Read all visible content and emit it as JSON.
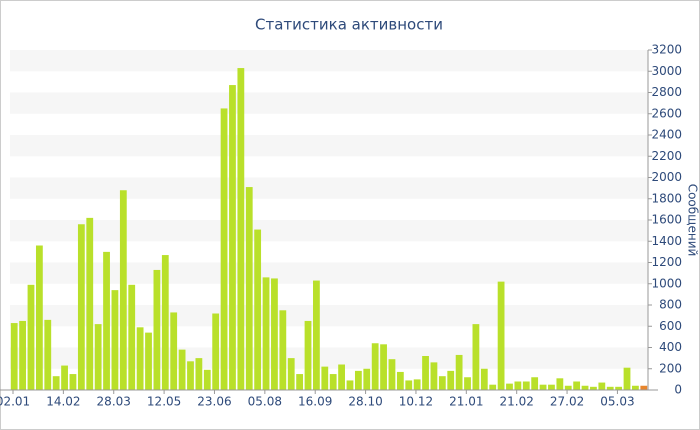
{
  "chart_data": {
    "type": "bar",
    "title": "Статистика активности",
    "y_axis_label": "Сообщений",
    "categories": [
      "02.01",
      null,
      null,
      null,
      null,
      null,
      "14.02",
      null,
      null,
      null,
      null,
      null,
      "28.03",
      null,
      null,
      null,
      null,
      null,
      "12.05",
      null,
      null,
      null,
      null,
      null,
      "23.06",
      null,
      null,
      null,
      null,
      null,
      "05.08",
      null,
      null,
      null,
      null,
      null,
      "16.09",
      null,
      null,
      null,
      null,
      null,
      "28.10",
      null,
      null,
      null,
      null,
      null,
      "10.12",
      null,
      null,
      null,
      null,
      null,
      "21.01",
      null,
      null,
      null,
      null,
      null,
      "21.02",
      null,
      null,
      null,
      null,
      null,
      "27.02",
      null,
      null,
      null,
      null,
      null,
      "05.03",
      null,
      null,
      null
    ],
    "values": [
      630,
      650,
      990,
      1360,
      660,
      130,
      230,
      150,
      1560,
      1620,
      620,
      1300,
      940,
      1880,
      990,
      590,
      540,
      1130,
      1270,
      730,
      380,
      270,
      300,
      190,
      720,
      2650,
      2870,
      3030,
      1910,
      1510,
      1060,
      1050,
      750,
      300,
      150,
      650,
      1030,
      220,
      150,
      240,
      90,
      180,
      200,
      440,
      430,
      290,
      170,
      90,
      100,
      320,
      260,
      130,
      180,
      330,
      120,
      620,
      200,
      50,
      1020,
      60,
      80,
      80,
      120,
      50,
      50,
      110,
      40,
      80,
      40,
      30,
      70,
      30,
      30,
      210,
      40,
      40
    ],
    "color": "#b9e02a",
    "highlight_color": "#e8852c",
    "highlight_last": true,
    "ylim": [
      0,
      3200
    ],
    "yticks": [
      0,
      200,
      400,
      600,
      800,
      1000,
      1200,
      1400,
      1600,
      1800,
      2000,
      2200,
      2400,
      2600,
      2800,
      3000,
      3200
    ],
    "grid": "bands"
  }
}
